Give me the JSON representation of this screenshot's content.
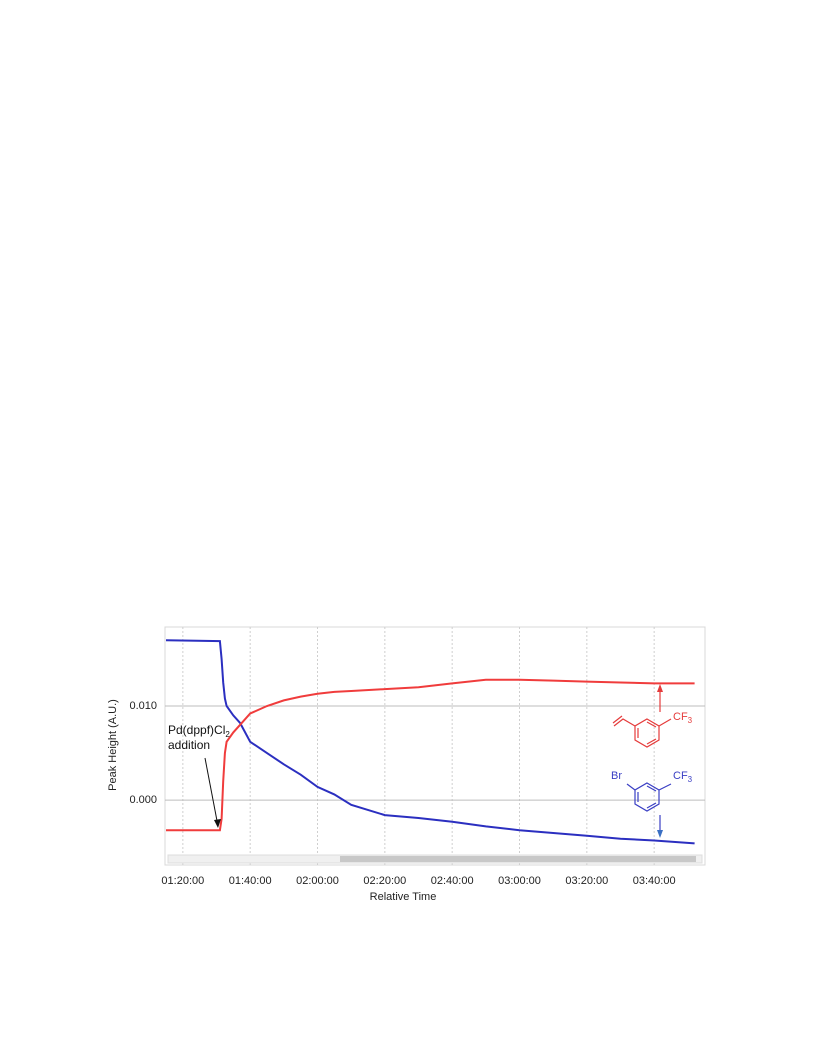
{
  "chart_data": {
    "type": "line",
    "x_label": "Relative Time",
    "y_label": "Peak Height (A.U.)",
    "x": [
      75,
      91,
      91.5,
      92,
      92.5,
      93,
      95,
      97,
      100,
      105,
      110,
      115,
      120,
      125,
      130,
      140,
      150,
      160,
      170,
      180,
      190,
      200,
      210,
      220,
      232
    ],
    "series": [
      {
        "color": "#2b2fc0",
        "values": [
          0.017,
          0.0169,
          0.015,
          0.0125,
          0.0108,
          0.01,
          0.009,
          0.0082,
          0.0062,
          0.005,
          0.0038,
          0.0027,
          0.0014,
          0.0006,
          -0.0005,
          -0.0016,
          -0.0019,
          -0.0023,
          -0.0028,
          -0.0032,
          -0.0035,
          -0.0038,
          -0.0041,
          -0.0043,
          -0.0046
        ]
      },
      {
        "color": "#f03c3c",
        "values": [
          -0.0032,
          -0.0032,
          -0.002,
          0.002,
          0.005,
          0.0062,
          0.0072,
          0.008,
          0.0092,
          0.01,
          0.0106,
          0.011,
          0.0113,
          0.0115,
          0.0116,
          0.0118,
          0.012,
          0.0124,
          0.0128,
          0.0128,
          0.0127,
          0.0126,
          0.0125,
          0.0124,
          0.0124
        ]
      }
    ],
    "xlim": [
      74.7,
      235.1
    ],
    "xticks": [
      {
        "value": 80,
        "label": "01:20:00"
      },
      {
        "value": 100,
        "label": "01:40:00"
      },
      {
        "value": 120,
        "label": "02:00:00"
      },
      {
        "value": 140,
        "label": "02:20:00"
      },
      {
        "value": 160,
        "label": "02:40:00"
      },
      {
        "value": 180,
        "label": "03:00:00"
      },
      {
        "value": 200,
        "label": "03:20:00"
      },
      {
        "value": 220,
        "label": "03:40:00"
      }
    ],
    "ylim": [
      -0.0069,
      0.0184
    ],
    "yticks": [
      {
        "value": 0,
        "label": "0.000"
      },
      {
        "value": 0.01,
        "label": "0.010"
      }
    ],
    "grid": true,
    "annotations": [
      {
        "text": "Pd(dppf)Cl",
        "subscript": "2"
      },
      {
        "text": "addition"
      }
    ],
    "structure_labels": [
      {
        "text": "CF",
        "subscript": "3"
      },
      {
        "text": "Br"
      },
      {
        "text": "CF",
        "subscript": "3"
      }
    ]
  }
}
